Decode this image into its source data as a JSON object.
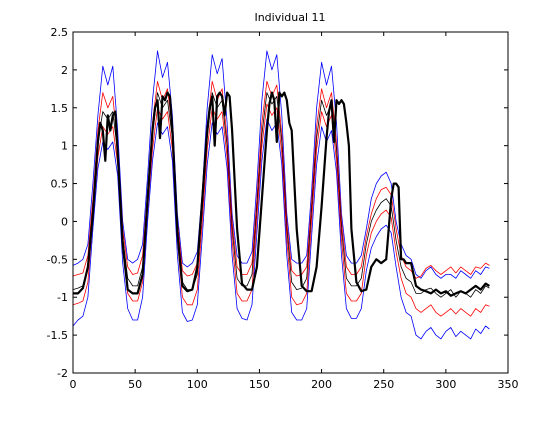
{
  "chart_data": {
    "type": "line",
    "title": "Individual 11",
    "xlabel": "",
    "ylabel": "",
    "xlim": [
      0,
      350
    ],
    "ylim": [
      -2,
      2.5
    ],
    "xticks": [
      0,
      50,
      100,
      150,
      200,
      250,
      300,
      350
    ],
    "yticks": [
      -2,
      -1.5,
      -1,
      -0.5,
      0,
      0.5,
      1,
      1.5,
      2,
      2.5
    ],
    "xtick_labels": [
      "0",
      "50",
      "100",
      "150",
      "200",
      "250",
      "300",
      "350"
    ],
    "ytick_labels": [
      "-2",
      "-1.5",
      "-1",
      "-0.5",
      "0",
      "0.5",
      "1",
      "1.5",
      "2",
      "2.5"
    ],
    "grid": false,
    "legend": "none",
    "series": [
      {
        "color": "#0000ff",
        "width": 0.8,
        "x": [
          0,
          4,
          8,
          12,
          16,
          20,
          24,
          28,
          32,
          36,
          40,
          44,
          48,
          52,
          56,
          60,
          64,
          68,
          72,
          76,
          80,
          84,
          88,
          92,
          96,
          100,
          104,
          108,
          112,
          116,
          120,
          124,
          128,
          132,
          136,
          140,
          144,
          148,
          152,
          156,
          160,
          164,
          168,
          172,
          176,
          180,
          184,
          188,
          192,
          196,
          200,
          204,
          208,
          212,
          216,
          220,
          224,
          228,
          232,
          236,
          240,
          244,
          248,
          252,
          256,
          260,
          264,
          268,
          272,
          276,
          280,
          284,
          288,
          292,
          296,
          300,
          304,
          308,
          312,
          316,
          320,
          324,
          328,
          332,
          335
        ],
        "y": [
          -0.58,
          -0.55,
          -0.5,
          -0.3,
          0.5,
          1.4,
          2.05,
          1.8,
          2.05,
          1.2,
          0.0,
          -0.5,
          -0.55,
          -0.5,
          -0.3,
          0.6,
          1.6,
          2.25,
          1.9,
          2.1,
          1.4,
          0.1,
          -0.55,
          -0.6,
          -0.55,
          -0.4,
          0.4,
          1.5,
          2.2,
          1.95,
          2.15,
          1.3,
          0.1,
          -0.45,
          -0.55,
          -0.55,
          -0.4,
          0.5,
          1.6,
          2.25,
          2.0,
          2.2,
          1.4,
          0.1,
          -0.5,
          -0.55,
          -0.55,
          -0.45,
          0.4,
          1.5,
          2.1,
          1.8,
          2.05,
          1.3,
          0.1,
          -0.45,
          -0.55,
          -0.55,
          -0.45,
          -0.1,
          0.3,
          0.5,
          0.6,
          0.65,
          0.5,
          0.0,
          -0.3,
          -0.45,
          -0.5,
          -0.7,
          -0.75,
          -0.65,
          -0.6,
          -0.7,
          -0.75,
          -0.7,
          -0.7,
          -0.75,
          -0.65,
          -0.7,
          -0.75,
          -0.65,
          -0.7,
          -0.6,
          -0.62
        ]
      },
      {
        "color": "#ff0000",
        "width": 0.8,
        "x": [
          0,
          4,
          8,
          12,
          16,
          20,
          24,
          28,
          32,
          36,
          40,
          44,
          48,
          52,
          56,
          60,
          64,
          68,
          72,
          76,
          80,
          84,
          88,
          92,
          96,
          100,
          104,
          108,
          112,
          116,
          120,
          124,
          128,
          132,
          136,
          140,
          144,
          148,
          152,
          156,
          160,
          164,
          168,
          172,
          176,
          180,
          184,
          188,
          192,
          196,
          200,
          204,
          208,
          212,
          216,
          220,
          224,
          228,
          232,
          236,
          240,
          244,
          248,
          252,
          256,
          260,
          264,
          268,
          272,
          276,
          280,
          284,
          288,
          292,
          296,
          300,
          304,
          308,
          312,
          316,
          320,
          324,
          328,
          332,
          335
        ],
        "y": [
          -0.72,
          -0.7,
          -0.68,
          -0.45,
          0.3,
          1.2,
          1.7,
          1.5,
          1.65,
          1.0,
          -0.1,
          -0.6,
          -0.7,
          -0.68,
          -0.45,
          0.4,
          1.3,
          1.85,
          1.6,
          1.75,
          1.2,
          0.0,
          -0.65,
          -0.72,
          -0.7,
          -0.55,
          0.25,
          1.25,
          1.85,
          1.6,
          1.75,
          1.1,
          0.0,
          -0.6,
          -0.7,
          -0.7,
          -0.55,
          0.3,
          1.3,
          1.85,
          1.65,
          1.8,
          1.15,
          0.0,
          -0.65,
          -0.72,
          -0.7,
          -0.6,
          0.25,
          1.25,
          1.75,
          1.5,
          1.7,
          1.05,
          0.0,
          -0.6,
          -0.7,
          -0.7,
          -0.6,
          -0.2,
          0.1,
          0.3,
          0.42,
          0.45,
          0.35,
          -0.1,
          -0.45,
          -0.6,
          -0.65,
          -0.75,
          -0.72,
          -0.62,
          -0.58,
          -0.65,
          -0.7,
          -0.65,
          -0.6,
          -0.68,
          -0.6,
          -0.65,
          -0.7,
          -0.6,
          -0.62,
          -0.55,
          -0.58
        ]
      },
      {
        "color": "#000000",
        "width": 0.8,
        "x": [
          0,
          4,
          8,
          12,
          16,
          20,
          24,
          28,
          32,
          36,
          40,
          44,
          48,
          52,
          56,
          60,
          64,
          68,
          72,
          76,
          80,
          84,
          88,
          92,
          96,
          100,
          104,
          108,
          112,
          116,
          120,
          124,
          128,
          132,
          136,
          140,
          144,
          148,
          152,
          156,
          160,
          164,
          168,
          172,
          176,
          180,
          184,
          188,
          192,
          196,
          200,
          204,
          208,
          212,
          216,
          220,
          224,
          228,
          232,
          236,
          240,
          244,
          248,
          252,
          256,
          260,
          264,
          268,
          272,
          276,
          280,
          284,
          288,
          292,
          296,
          300,
          304,
          308,
          312,
          316,
          320,
          324,
          328,
          332,
          335
        ],
        "y": [
          -0.9,
          -0.88,
          -0.85,
          -0.6,
          0.2,
          1.05,
          1.45,
          1.35,
          1.45,
          0.9,
          -0.2,
          -0.75,
          -0.85,
          -0.85,
          -0.6,
          0.3,
          1.15,
          1.7,
          1.5,
          1.6,
          1.1,
          -0.1,
          -0.8,
          -0.9,
          -0.9,
          -0.7,
          0.15,
          1.1,
          1.7,
          1.5,
          1.6,
          1.0,
          -0.1,
          -0.75,
          -0.85,
          -0.85,
          -0.7,
          0.2,
          1.15,
          1.7,
          1.55,
          1.65,
          1.05,
          -0.1,
          -0.8,
          -0.9,
          -0.88,
          -0.75,
          0.15,
          1.1,
          1.6,
          1.4,
          1.55,
          0.95,
          -0.1,
          -0.75,
          -0.85,
          -0.85,
          -0.75,
          -0.3,
          0.0,
          0.15,
          0.25,
          0.3,
          0.2,
          -0.25,
          -0.6,
          -0.75,
          -0.8,
          -0.95,
          -0.95,
          -0.9,
          -0.88,
          -0.95,
          -1.0,
          -0.95,
          -0.9,
          -1.0,
          -0.92,
          -0.95,
          -1.0,
          -0.9,
          -0.95,
          -0.85,
          -0.88
        ]
      },
      {
        "color": "#ff0000",
        "width": 0.8,
        "x": [
          0,
          4,
          8,
          12,
          16,
          20,
          24,
          28,
          32,
          36,
          40,
          44,
          48,
          52,
          56,
          60,
          64,
          68,
          72,
          76,
          80,
          84,
          88,
          92,
          96,
          100,
          104,
          108,
          112,
          116,
          120,
          124,
          128,
          132,
          136,
          140,
          144,
          148,
          152,
          156,
          160,
          164,
          168,
          172,
          176,
          180,
          184,
          188,
          192,
          196,
          200,
          204,
          208,
          212,
          216,
          220,
          224,
          228,
          232,
          236,
          240,
          244,
          248,
          252,
          256,
          260,
          264,
          268,
          272,
          276,
          280,
          284,
          288,
          292,
          296,
          300,
          304,
          308,
          312,
          316,
          320,
          324,
          328,
          332,
          335
        ],
        "y": [
          -1.1,
          -1.08,
          -1.05,
          -0.8,
          0.05,
          0.85,
          1.25,
          1.15,
          1.25,
          0.75,
          -0.35,
          -0.95,
          -1.05,
          -1.05,
          -0.8,
          0.15,
          0.95,
          1.5,
          1.35,
          1.45,
          0.95,
          -0.25,
          -1.0,
          -1.1,
          -1.1,
          -0.9,
          0.0,
          0.95,
          1.5,
          1.35,
          1.45,
          0.85,
          -0.25,
          -0.95,
          -1.05,
          -1.05,
          -0.9,
          0.05,
          1.0,
          1.55,
          1.4,
          1.5,
          0.9,
          -0.25,
          -1.0,
          -1.1,
          -1.08,
          -0.95,
          0.0,
          0.95,
          1.45,
          1.25,
          1.4,
          0.8,
          -0.25,
          -0.95,
          -1.05,
          -1.05,
          -0.95,
          -0.45,
          -0.15,
          0.0,
          0.1,
          0.15,
          0.05,
          -0.4,
          -0.75,
          -0.95,
          -1.0,
          -1.15,
          -1.2,
          -1.15,
          -1.1,
          -1.2,
          -1.25,
          -1.2,
          -1.15,
          -1.22,
          -1.15,
          -1.2,
          -1.25,
          -1.15,
          -1.2,
          -1.1,
          -1.12
        ]
      },
      {
        "color": "#0000ff",
        "width": 0.8,
        "x": [
          0,
          4,
          8,
          12,
          16,
          20,
          24,
          28,
          32,
          36,
          40,
          44,
          48,
          52,
          56,
          60,
          64,
          68,
          72,
          76,
          80,
          84,
          88,
          92,
          96,
          100,
          104,
          108,
          112,
          116,
          120,
          124,
          128,
          132,
          136,
          140,
          144,
          148,
          152,
          156,
          160,
          164,
          168,
          172,
          176,
          180,
          184,
          188,
          192,
          196,
          200,
          204,
          208,
          212,
          216,
          220,
          224,
          228,
          232,
          236,
          240,
          244,
          248,
          252,
          256,
          260,
          264,
          268,
          272,
          276,
          280,
          284,
          288,
          292,
          296,
          300,
          304,
          308,
          312,
          316,
          320,
          324,
          328,
          332,
          335
        ],
        "y": [
          -1.38,
          -1.3,
          -1.25,
          -1.0,
          -0.1,
          0.7,
          1.05,
          0.95,
          1.05,
          0.6,
          -0.55,
          -1.15,
          -1.3,
          -1.3,
          -1.0,
          0.0,
          0.8,
          1.3,
          1.15,
          1.25,
          0.8,
          -0.45,
          -1.2,
          -1.32,
          -1.3,
          -1.1,
          -0.2,
          0.75,
          1.3,
          1.15,
          1.25,
          0.7,
          -0.45,
          -1.15,
          -1.28,
          -1.3,
          -1.1,
          -0.15,
          0.8,
          1.35,
          1.2,
          1.3,
          0.75,
          -0.45,
          -1.2,
          -1.3,
          -1.3,
          -1.15,
          -0.2,
          0.75,
          1.25,
          1.05,
          1.2,
          0.65,
          -0.45,
          -1.15,
          -1.28,
          -1.28,
          -1.15,
          -0.65,
          -0.35,
          -0.2,
          -0.1,
          -0.05,
          -0.15,
          -0.6,
          -1.0,
          -1.2,
          -1.25,
          -1.5,
          -1.55,
          -1.45,
          -1.4,
          -1.5,
          -1.55,
          -1.45,
          -1.4,
          -1.52,
          -1.45,
          -1.5,
          -1.55,
          -1.42,
          -1.48,
          -1.38,
          -1.42
        ]
      },
      {
        "color": "#000000",
        "width": 2.2,
        "x": [
          0,
          4,
          8,
          12,
          16,
          20,
          22,
          24,
          26,
          28,
          30,
          32,
          34,
          36,
          40,
          44,
          48,
          52,
          56,
          60,
          64,
          66,
          68,
          70,
          72,
          74,
          76,
          78,
          80,
          84,
          88,
          92,
          96,
          100,
          104,
          108,
          110,
          112,
          114,
          116,
          118,
          120,
          122,
          124,
          126,
          128,
          132,
          136,
          140,
          144,
          148,
          152,
          156,
          158,
          160,
          162,
          164,
          166,
          168,
          170,
          172,
          174,
          176,
          180,
          184,
          188,
          192,
          196,
          200,
          204,
          206,
          208,
          210,
          212,
          214,
          216,
          218,
          220,
          222,
          224,
          228,
          232,
          236,
          240,
          244,
          248,
          252,
          256,
          258,
          260,
          262,
          264,
          266,
          268,
          272,
          276,
          280,
          284,
          288,
          292,
          296,
          300,
          304,
          308,
          312,
          316,
          320,
          324,
          328,
          332,
          335
        ],
        "y": [
          -0.95,
          -0.95,
          -0.88,
          -0.6,
          0.1,
          1.05,
          1.3,
          1.2,
          0.8,
          1.4,
          1.2,
          1.4,
          1.45,
          0.9,
          -0.3,
          -0.9,
          -0.95,
          -0.95,
          -0.7,
          0.3,
          1.2,
          1.5,
          1.6,
          1.1,
          1.65,
          1.6,
          1.7,
          1.65,
          1.2,
          -0.15,
          -0.85,
          -0.92,
          -0.9,
          -0.6,
          0.3,
          1.2,
          1.5,
          1.65,
          1.0,
          1.65,
          1.7,
          1.65,
          1.4,
          1.7,
          1.65,
          1.2,
          -0.1,
          -0.82,
          -0.9,
          -0.9,
          -0.6,
          0.3,
          1.2,
          1.55,
          1.7,
          1.6,
          1.05,
          1.7,
          1.65,
          1.7,
          1.6,
          1.3,
          1.2,
          -0.1,
          -0.85,
          -0.92,
          -0.92,
          -0.6,
          0.2,
          1.1,
          1.45,
          1.6,
          1.05,
          1.6,
          1.55,
          1.6,
          1.55,
          1.3,
          1.0,
          -0.1,
          -0.8,
          -0.92,
          -0.9,
          -0.6,
          -0.5,
          -0.55,
          -0.5,
          0.3,
          0.5,
          0.5,
          0.45,
          -0.5,
          -0.5,
          -0.55,
          -0.55,
          -0.85,
          -0.9,
          -0.92,
          -0.95,
          -0.9,
          -0.95,
          -0.92,
          -0.98,
          -0.95,
          -0.92,
          -0.95,
          -0.9,
          -0.85,
          -0.9,
          -0.82,
          -0.85
        ]
      }
    ]
  }
}
